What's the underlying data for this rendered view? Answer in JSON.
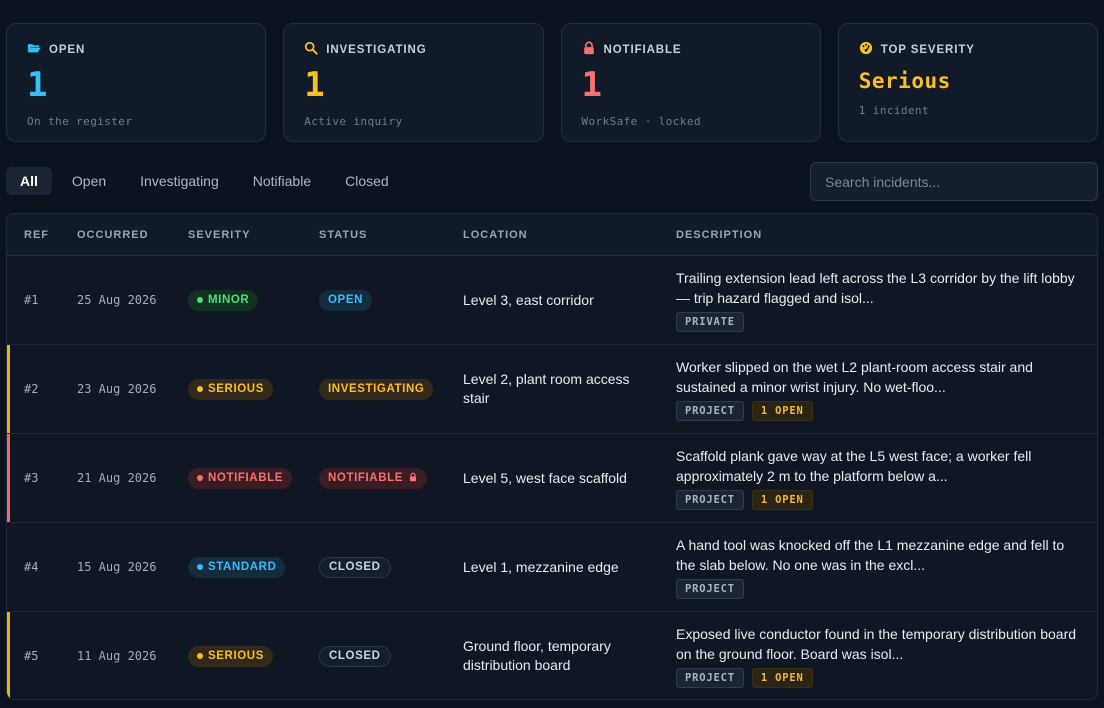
{
  "colors": {
    "open": "#38bdf8",
    "investigating": "#fbbf24",
    "notifiable": "#f87171",
    "minor": "#4ade80",
    "standard": "#38bdf8",
    "closed": "#cbd5e1"
  },
  "stats": [
    {
      "icon": "folder-open-icon",
      "label": "OPEN",
      "value": "1",
      "sub": "On the register",
      "color": "#38bdf8"
    },
    {
      "icon": "magnifier-icon",
      "label": "INVESTIGATING",
      "value": "1",
      "sub": "Active inquiry",
      "color": "#fbbf24"
    },
    {
      "icon": "lock-icon",
      "label": "NOTIFIABLE",
      "value": "1",
      "sub": "WorkSafe · locked",
      "color": "#f87171"
    },
    {
      "icon": "gauge-icon",
      "label": "TOP SEVERITY",
      "value": "Serious",
      "sub": "1 incident",
      "color": "#fbbf24"
    }
  ],
  "tabs": [
    "All",
    "Open",
    "Investigating",
    "Notifiable",
    "Closed"
  ],
  "active_tab": "All",
  "search": {
    "placeholder": "Search incidents...",
    "value": ""
  },
  "table": {
    "headers": [
      "REF",
      "OCCURRED",
      "SEVERITY",
      "STATUS",
      "LOCATION",
      "DESCRIPTION"
    ],
    "rows": [
      {
        "ref": "#1",
        "occurred": "25 Aug 2026",
        "severity": "MINOR",
        "severity_kind": "minor",
        "status": "OPEN",
        "status_kind": "open",
        "status_locked": false,
        "location": "Level 3, east corridor",
        "description": "Trailing extension lead left across the L3 corridor by the lift lobby — trip hazard flagged and isol...",
        "tags": [
          {
            "text": "PRIVATE",
            "kind": "neutral"
          }
        ],
        "accent": ""
      },
      {
        "ref": "#2",
        "occurred": "23 Aug 2026",
        "severity": "SERIOUS",
        "severity_kind": "serious",
        "status": "INVESTIGATING",
        "status_kind": "investigating",
        "status_locked": false,
        "location": "Level 2, plant room access stair",
        "description": "Worker slipped on the wet L2 plant-room access stair and sustained a minor wrist injury. No wet-floo...",
        "tags": [
          {
            "text": "PROJECT",
            "kind": "neutral"
          },
          {
            "text": "1 OPEN",
            "kind": "warn"
          }
        ],
        "accent": "#f5b301"
      },
      {
        "ref": "#3",
        "occurred": "21 Aug 2026",
        "severity": "NOTIFIABLE",
        "severity_kind": "notifiable",
        "status": "NOTIFIABLE",
        "status_kind": "notifiable",
        "status_locked": true,
        "location": "Level 5, west face scaffold",
        "description": "Scaffold plank gave way at the L5 west face; a worker fell approximately 2 m to the platform below a...",
        "tags": [
          {
            "text": "PROJECT",
            "kind": "neutral"
          },
          {
            "text": "1 OPEN",
            "kind": "warn"
          }
        ],
        "accent": "#f16b6b"
      },
      {
        "ref": "#4",
        "occurred": "15 Aug 2026",
        "severity": "STANDARD",
        "severity_kind": "standard",
        "status": "CLOSED",
        "status_kind": "closed",
        "status_locked": false,
        "location": "Level 1, mezzanine edge",
        "description": "A hand tool was knocked off the L1 mezzanine edge and fell to the slab below. No one was in the excl...",
        "tags": [
          {
            "text": "PROJECT",
            "kind": "neutral"
          }
        ],
        "accent": ""
      },
      {
        "ref": "#5",
        "occurred": "11 Aug 2026",
        "severity": "SERIOUS",
        "severity_kind": "serious",
        "status": "CLOSED",
        "status_kind": "closed",
        "status_locked": false,
        "location": "Ground floor, temporary distribution board",
        "description": "Exposed live conductor found in the temporary distribution board on the ground floor. Board was isol...",
        "tags": [
          {
            "text": "PROJECT",
            "kind": "neutral"
          },
          {
            "text": "1 OPEN",
            "kind": "warn"
          }
        ],
        "accent": "#f5b301"
      }
    ]
  }
}
